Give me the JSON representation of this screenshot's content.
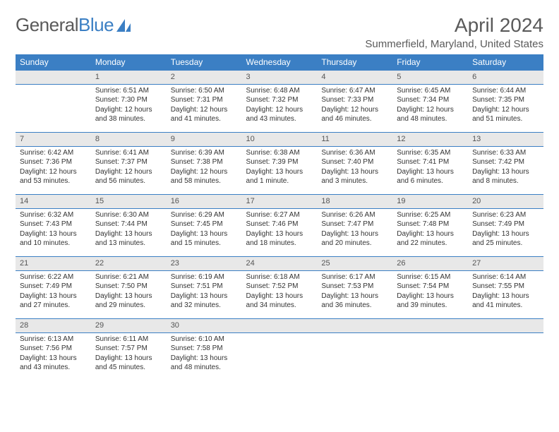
{
  "brand": {
    "name_part1": "General",
    "name_part2": "Blue"
  },
  "title": "April 2024",
  "location": "Summerfield, Maryland, United States",
  "colors": {
    "header_bg": "#3b7fc4",
    "daynum_bg": "#e8e8e8",
    "text": "#333333",
    "muted": "#5a5a5a"
  },
  "weekday_labels": [
    "Sunday",
    "Monday",
    "Tuesday",
    "Wednesday",
    "Thursday",
    "Friday",
    "Saturday"
  ],
  "weeks": [
    [
      null,
      {
        "n": "1",
        "sr": "6:51 AM",
        "ss": "7:30 PM",
        "dl": "12 hours and 38 minutes."
      },
      {
        "n": "2",
        "sr": "6:50 AM",
        "ss": "7:31 PM",
        "dl": "12 hours and 41 minutes."
      },
      {
        "n": "3",
        "sr": "6:48 AM",
        "ss": "7:32 PM",
        "dl": "12 hours and 43 minutes."
      },
      {
        "n": "4",
        "sr": "6:47 AM",
        "ss": "7:33 PM",
        "dl": "12 hours and 46 minutes."
      },
      {
        "n": "5",
        "sr": "6:45 AM",
        "ss": "7:34 PM",
        "dl": "12 hours and 48 minutes."
      },
      {
        "n": "6",
        "sr": "6:44 AM",
        "ss": "7:35 PM",
        "dl": "12 hours and 51 minutes."
      }
    ],
    [
      {
        "n": "7",
        "sr": "6:42 AM",
        "ss": "7:36 PM",
        "dl": "12 hours and 53 minutes."
      },
      {
        "n": "8",
        "sr": "6:41 AM",
        "ss": "7:37 PM",
        "dl": "12 hours and 56 minutes."
      },
      {
        "n": "9",
        "sr": "6:39 AM",
        "ss": "7:38 PM",
        "dl": "12 hours and 58 minutes."
      },
      {
        "n": "10",
        "sr": "6:38 AM",
        "ss": "7:39 PM",
        "dl": "13 hours and 1 minute."
      },
      {
        "n": "11",
        "sr": "6:36 AM",
        "ss": "7:40 PM",
        "dl": "13 hours and 3 minutes."
      },
      {
        "n": "12",
        "sr": "6:35 AM",
        "ss": "7:41 PM",
        "dl": "13 hours and 6 minutes."
      },
      {
        "n": "13",
        "sr": "6:33 AM",
        "ss": "7:42 PM",
        "dl": "13 hours and 8 minutes."
      }
    ],
    [
      {
        "n": "14",
        "sr": "6:32 AM",
        "ss": "7:43 PM",
        "dl": "13 hours and 10 minutes."
      },
      {
        "n": "15",
        "sr": "6:30 AM",
        "ss": "7:44 PM",
        "dl": "13 hours and 13 minutes."
      },
      {
        "n": "16",
        "sr": "6:29 AM",
        "ss": "7:45 PM",
        "dl": "13 hours and 15 minutes."
      },
      {
        "n": "17",
        "sr": "6:27 AM",
        "ss": "7:46 PM",
        "dl": "13 hours and 18 minutes."
      },
      {
        "n": "18",
        "sr": "6:26 AM",
        "ss": "7:47 PM",
        "dl": "13 hours and 20 minutes."
      },
      {
        "n": "19",
        "sr": "6:25 AM",
        "ss": "7:48 PM",
        "dl": "13 hours and 22 minutes."
      },
      {
        "n": "20",
        "sr": "6:23 AM",
        "ss": "7:49 PM",
        "dl": "13 hours and 25 minutes."
      }
    ],
    [
      {
        "n": "21",
        "sr": "6:22 AM",
        "ss": "7:49 PM",
        "dl": "13 hours and 27 minutes."
      },
      {
        "n": "22",
        "sr": "6:21 AM",
        "ss": "7:50 PM",
        "dl": "13 hours and 29 minutes."
      },
      {
        "n": "23",
        "sr": "6:19 AM",
        "ss": "7:51 PM",
        "dl": "13 hours and 32 minutes."
      },
      {
        "n": "24",
        "sr": "6:18 AM",
        "ss": "7:52 PM",
        "dl": "13 hours and 34 minutes."
      },
      {
        "n": "25",
        "sr": "6:17 AM",
        "ss": "7:53 PM",
        "dl": "13 hours and 36 minutes."
      },
      {
        "n": "26",
        "sr": "6:15 AM",
        "ss": "7:54 PM",
        "dl": "13 hours and 39 minutes."
      },
      {
        "n": "27",
        "sr": "6:14 AM",
        "ss": "7:55 PM",
        "dl": "13 hours and 41 minutes."
      }
    ],
    [
      {
        "n": "28",
        "sr": "6:13 AM",
        "ss": "7:56 PM",
        "dl": "13 hours and 43 minutes."
      },
      {
        "n": "29",
        "sr": "6:11 AM",
        "ss": "7:57 PM",
        "dl": "13 hours and 45 minutes."
      },
      {
        "n": "30",
        "sr": "6:10 AM",
        "ss": "7:58 PM",
        "dl": "13 hours and 48 minutes."
      },
      null,
      null,
      null,
      null
    ]
  ],
  "labels": {
    "sunrise": "Sunrise:",
    "sunset": "Sunset:",
    "daylight": "Daylight:"
  }
}
